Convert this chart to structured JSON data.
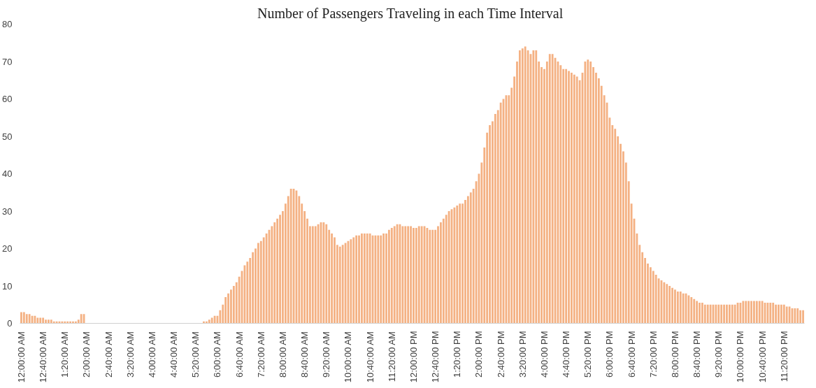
{
  "chart_data": {
    "type": "bar",
    "title": "Number of Passengers Traveling  in each Time Interval",
    "categories": [
      "12:00:00 AM",
      null,
      null,
      null,
      null,
      null,
      null,
      null,
      "12:40:00 AM",
      null,
      null,
      null,
      null,
      null,
      null,
      null,
      "1:20:00 AM",
      null,
      null,
      null,
      null,
      null,
      null,
      null,
      "2:00:00 AM",
      null,
      null,
      null,
      null,
      null,
      null,
      null,
      "2:40:00 AM",
      null,
      null,
      null,
      null,
      null,
      null,
      null,
      "3:20:00 AM",
      null,
      null,
      null,
      null,
      null,
      null,
      null,
      "4:00:00 AM",
      null,
      null,
      null,
      null,
      null,
      null,
      null,
      "4:40:00 AM",
      null,
      null,
      null,
      null,
      null,
      null,
      null,
      "5:20:00 AM",
      null,
      null,
      null,
      null,
      null,
      null,
      null,
      "6:00:00 AM",
      null,
      null,
      null,
      null,
      null,
      null,
      null,
      "6:40:00 AM",
      null,
      null,
      null,
      null,
      null,
      null,
      null,
      "7:20:00 AM",
      null,
      null,
      null,
      null,
      null,
      null,
      null,
      "8:00:00 AM",
      null,
      null,
      null,
      null,
      null,
      null,
      null,
      "8:40:00 AM",
      null,
      null,
      null,
      null,
      null,
      null,
      null,
      "9:20:00 AM",
      null,
      null,
      null,
      null,
      null,
      null,
      null,
      "10:00:00 AM",
      null,
      null,
      null,
      null,
      null,
      null,
      null,
      "10:40:00 AM",
      null,
      null,
      null,
      null,
      null,
      null,
      null,
      "11:20:00 AM",
      null,
      null,
      null,
      null,
      null,
      null,
      null,
      "12:00:00 PM",
      null,
      null,
      null,
      null,
      null,
      null,
      null,
      "12:40:00 PM",
      null,
      null,
      null,
      null,
      null,
      null,
      null,
      "1:20:00 PM",
      null,
      null,
      null,
      null,
      null,
      null,
      null,
      "2:00:00 PM",
      null,
      null,
      null,
      null,
      null,
      null,
      null,
      "2:40:00 PM",
      null,
      null,
      null,
      null,
      null,
      null,
      null,
      "3:20:00 PM",
      null,
      null,
      null,
      null,
      null,
      null,
      null,
      "4:00:00 PM",
      null,
      null,
      null,
      null,
      null,
      null,
      null,
      "4:40:00 PM",
      null,
      null,
      null,
      null,
      null,
      null,
      null,
      "5:20:00 PM",
      null,
      null,
      null,
      null,
      null,
      null,
      null,
      "6:00:00 PM",
      null,
      null,
      null,
      null,
      null,
      null,
      null,
      "6:40:00 PM",
      null,
      null,
      null,
      null,
      null,
      null,
      null,
      "7:20:00 PM",
      null,
      null,
      null,
      null,
      null,
      null,
      null,
      "8:00:00 PM",
      null,
      null,
      null,
      null,
      null,
      null,
      null,
      "8:40:00 PM",
      null,
      null,
      null,
      null,
      null,
      null,
      null,
      "9:20:00 PM",
      null,
      null,
      null,
      null,
      null,
      null,
      null,
      "10:00:00 PM",
      null,
      null,
      null,
      null,
      null,
      null,
      null,
      "10:40:00 PM",
      null,
      null,
      null,
      null,
      null,
      null,
      null,
      "11:20:00 PM",
      null,
      null,
      null,
      null,
      null,
      null,
      null
    ],
    "values": [
      3,
      3,
      2.5,
      2.5,
      2,
      2,
      1.5,
      1.5,
      1.5,
      1,
      1,
      1,
      0.5,
      0.5,
      0.5,
      0.5,
      0.5,
      0.5,
      0.5,
      0.5,
      0.5,
      1,
      2.5,
      2.5,
      0,
      0,
      0,
      0,
      0,
      0,
      0,
      0,
      0,
      0,
      0,
      0,
      0,
      0,
      0,
      0,
      0,
      0,
      0,
      0,
      0,
      0,
      0,
      0,
      0,
      0,
      0,
      0,
      0,
      0,
      0,
      0,
      0,
      0,
      0,
      0,
      0,
      0,
      0,
      0,
      0,
      0,
      0,
      0.5,
      0.5,
      1,
      1.5,
      2,
      2,
      3.5,
      5,
      7,
      8,
      9,
      10,
      11,
      12.5,
      14,
      15.5,
      16.5,
      17.5,
      19,
      20,
      21.5,
      22,
      23,
      24,
      25,
      26,
      27,
      28,
      29,
      30,
      32,
      34,
      36,
      36,
      35.5,
      34,
      32,
      30,
      28,
      26,
      26,
      26,
      26.5,
      27,
      27,
      26.5,
      25,
      24,
      23,
      21,
      20.5,
      21,
      21.5,
      22,
      22.5,
      23,
      23.5,
      23.5,
      24,
      24,
      24,
      24,
      23.5,
      23.5,
      23.5,
      23.5,
      24,
      24,
      25,
      25.5,
      26,
      26.5,
      26.5,
      26,
      26,
      26,
      26,
      25.5,
      25.5,
      26,
      26,
      26,
      25.5,
      25,
      25,
      25,
      26,
      27,
      28,
      29,
      30,
      30.5,
      31,
      31.5,
      32,
      32,
      33,
      34,
      35,
      36,
      38,
      40,
      43,
      47,
      51,
      53,
      54,
      56,
      57,
      59,
      60,
      61,
      61,
      63,
      66,
      70,
      73,
      73.5,
      74,
      73,
      72,
      73,
      73,
      70,
      68.5,
      68,
      70,
      72,
      72,
      71,
      70,
      69,
      68,
      68,
      67.5,
      67,
      66.5,
      66,
      65,
      67,
      70,
      70.5,
      70,
      68.5,
      67,
      65.5,
      63.5,
      61,
      59,
      55,
      53,
      52,
      50,
      48,
      46,
      43,
      38,
      32,
      28,
      24,
      21,
      19,
      17.5,
      16,
      15,
      14,
      13,
      12,
      11.5,
      11,
      10.5,
      10,
      9.5,
      9,
      8.5,
      8.5,
      8,
      8,
      7.5,
      7,
      6.5,
      6,
      5.5,
      5.5,
      5,
      5,
      5,
      5,
      5,
      5,
      5,
      5,
      5,
      5,
      5,
      5,
      5.5,
      5.5,
      6,
      6,
      6,
      6,
      6,
      6,
      6,
      6,
      5.5,
      5.5,
      5.5,
      5.5,
      5,
      5,
      5,
      5,
      4.5,
      4.5,
      4,
      4,
      4,
      3.5,
      3.5
    ],
    "color": "#f4b183",
    "ylim": [
      0,
      80
    ],
    "yticks": [
      0,
      10,
      20,
      30,
      40,
      50,
      60,
      70,
      80
    ],
    "grid": false,
    "legend": false
  }
}
